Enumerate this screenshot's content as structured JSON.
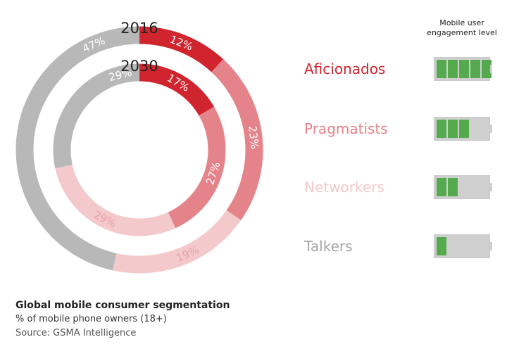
{
  "chart_data": {
    "type": "donut",
    "rings": [
      {
        "year": "2016",
        "segments": [
          {
            "segment": "Aficionados",
            "value": 12,
            "label": "12%"
          },
          {
            "segment": "Pragmatists",
            "value": 23,
            "label": "23%"
          },
          {
            "segment": "Networkers",
            "value": 19,
            "label": "19%"
          },
          {
            "segment": "Talkers",
            "value": 47,
            "label": "47%"
          }
        ]
      },
      {
        "year": "2030",
        "segments": [
          {
            "segment": "Aficionados",
            "value": 17,
            "label": "17%"
          },
          {
            "segment": "Pragmatists",
            "value": 27,
            "label": "27%"
          },
          {
            "segment": "Networkers",
            "value": 29,
            "label": "29%"
          },
          {
            "segment": "Talkers",
            "value": 29,
            "label": "29%"
          }
        ]
      }
    ],
    "legend": {
      "header": "Mobile user engagement level",
      "items": [
        {
          "name": "Aficionados",
          "color": "#d0252f",
          "engagement_bars": 5,
          "max_bars": 5
        },
        {
          "name": "Pragmatists",
          "color": "#e5838a",
          "engagement_bars": 3,
          "max_bars": 5
        },
        {
          "name": "Networkers",
          "color": "#f3c9cb",
          "engagement_bars": 2,
          "max_bars": 5
        },
        {
          "name": "Talkers",
          "color": "#a6a6a6",
          "engagement_bars": 1,
          "max_bars": 5
        }
      ]
    },
    "title": "Global mobile consumer segmentation",
    "subtitle": "% of mobile phone owners (18+)",
    "source": "Source: GSMA Intelligence",
    "colors": {
      "Aficionados": "#d0252f",
      "Pragmatists": "#e5838a",
      "Networkers": "#f3c9cb",
      "Talkers": "#b8b8b8",
      "engagement_fill": "#54aa4c",
      "engagement_empty": "#cfcfcf"
    }
  }
}
